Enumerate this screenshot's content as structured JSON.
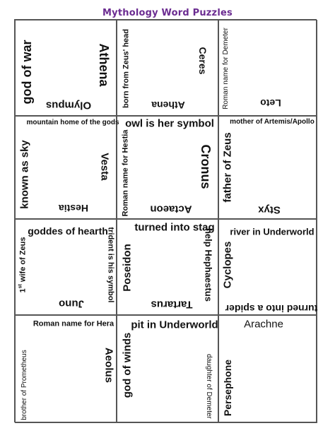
{
  "title": "Mythology Word Puzzles",
  "cells": [
    {
      "left": "god of war",
      "right": "Athena",
      "bottom": "Olympus"
    },
    {
      "left": "born from Zeus' head",
      "right": "Ceres",
      "bottom": "Athena"
    },
    {
      "left": "Roman name for Demeter",
      "bottom": "Leto"
    },
    {
      "top": "mountain home of the gods",
      "left": "known as sky",
      "right": "Vesta",
      "bottom": "Hestia"
    },
    {
      "top": "owl is her symbol",
      "left": "Roman name for Hestia",
      "right": "Cronus",
      "bottom": "Actaeon"
    },
    {
      "top": "mother of Artemis/Apollo",
      "left": "father of Zeus",
      "bottom": "Styx"
    },
    {
      "top": "goddes of hearth",
      "left_main": "wife of Zeus",
      "left_num": "1",
      "left_sup": "st",
      "right": "trident is his symbol",
      "bottom": "Juno"
    },
    {
      "top": "turned into stag",
      "left": "Poseidon",
      "right": "help Hephaestus",
      "bottom": "Tartarus"
    },
    {
      "top": "river in Underworld",
      "left": "Cyclopes",
      "bottom": "turned into a spider"
    },
    {
      "top": "Roman name for Hera",
      "left": "brother of Prometheus",
      "right": "Aeolus"
    },
    {
      "top": "pit in Underworld",
      "left": "god of winds",
      "right": "daughter of Demeter"
    },
    {
      "top": "Arachne",
      "left": "Persephone"
    }
  ]
}
